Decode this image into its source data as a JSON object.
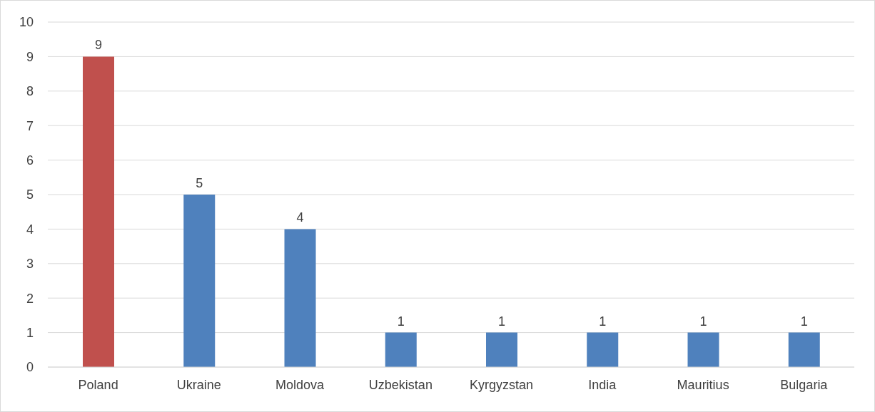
{
  "chart_data": {
    "type": "bar",
    "categories": [
      "Poland",
      "Ukraine",
      "Moldova",
      "Uzbekistan",
      "Kyrgyzstan",
      "India",
      "Mauritius",
      "Bulgaria"
    ],
    "values": [
      9,
      5,
      4,
      1,
      1,
      1,
      1,
      1
    ],
    "colors": [
      "#c0504d",
      "#4f81bd",
      "#4f81bd",
      "#4f81bd",
      "#4f81bd",
      "#4f81bd",
      "#4f81bd",
      "#4f81bd"
    ],
    "ylim": [
      0,
      10
    ],
    "yticks": [
      0,
      1,
      2,
      3,
      4,
      5,
      6,
      7,
      8,
      9,
      10
    ],
    "grid": "y",
    "data_labels": true,
    "legend": false
  }
}
